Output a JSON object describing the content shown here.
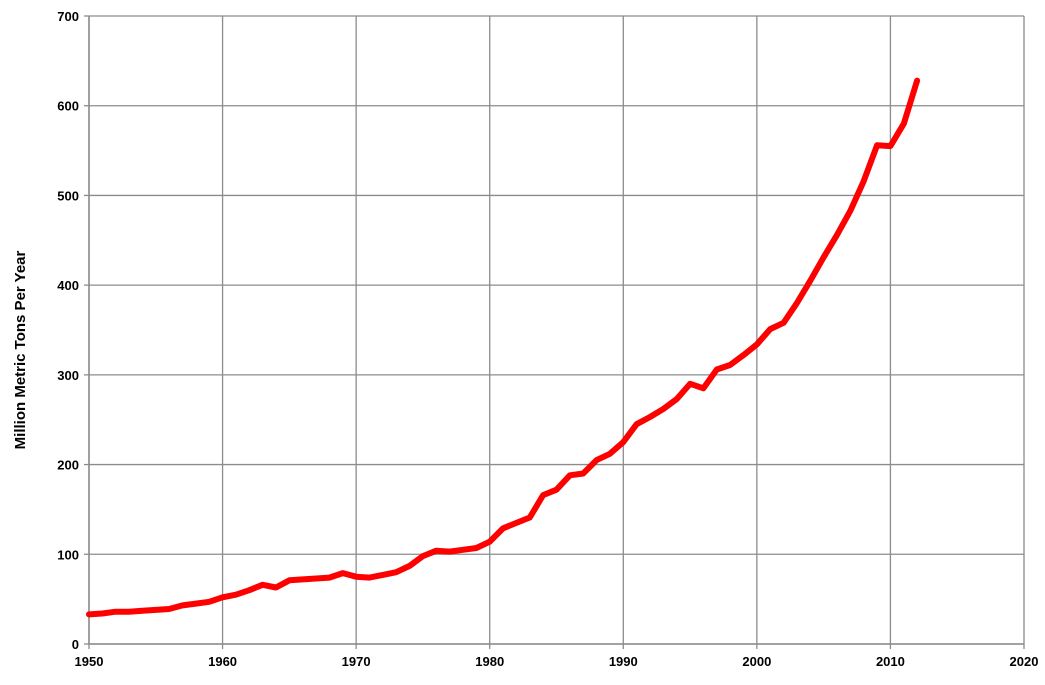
{
  "chart_data": {
    "type": "line",
    "title": "",
    "xlabel": "",
    "ylabel": "Million Metric Tons Per Year",
    "xlim": [
      1950,
      2020
    ],
    "ylim": [
      0,
      700
    ],
    "x_ticks": [
      1950,
      1960,
      1970,
      1980,
      1990,
      2000,
      2010,
      2020
    ],
    "y_ticks": [
      0,
      100,
      200,
      300,
      400,
      500,
      600,
      700
    ],
    "grid": true,
    "legend": "none",
    "series": [
      {
        "color": "#ff0000",
        "x": [
          1950,
          1951,
          1952,
          1953,
          1954,
          1955,
          1956,
          1957,
          1958,
          1959,
          1960,
          1961,
          1962,
          1963,
          1964,
          1965,
          1966,
          1967,
          1968,
          1969,
          1970,
          1971,
          1972,
          1973,
          1974,
          1975,
          1976,
          1977,
          1978,
          1979,
          1980,
          1981,
          1982,
          1983,
          1984,
          1985,
          1986,
          1987,
          1988,
          1989,
          1990,
          1991,
          1992,
          1993,
          1994,
          1995,
          1996,
          1997,
          1998,
          1999,
          2000,
          2001,
          2002,
          2003,
          2004,
          2005,
          2006,
          2007,
          2008,
          2009,
          2010,
          2011,
          2012
        ],
        "values": [
          33,
          34,
          36,
          36,
          37,
          38,
          39,
          43,
          45,
          47,
          52,
          55,
          60,
          66,
          63,
          71,
          72,
          73,
          74,
          79,
          75,
          74,
          77,
          80,
          87,
          98,
          104,
          103,
          105,
          107,
          114,
          129,
          135,
          141,
          166,
          172,
          188,
          190,
          205,
          212,
          225,
          245,
          253,
          262,
          273,
          290,
          285,
          306,
          311,
          322,
          334,
          351,
          358,
          380,
          405,
          431,
          456,
          483,
          516,
          556,
          555,
          580,
          628
        ]
      }
    ]
  }
}
